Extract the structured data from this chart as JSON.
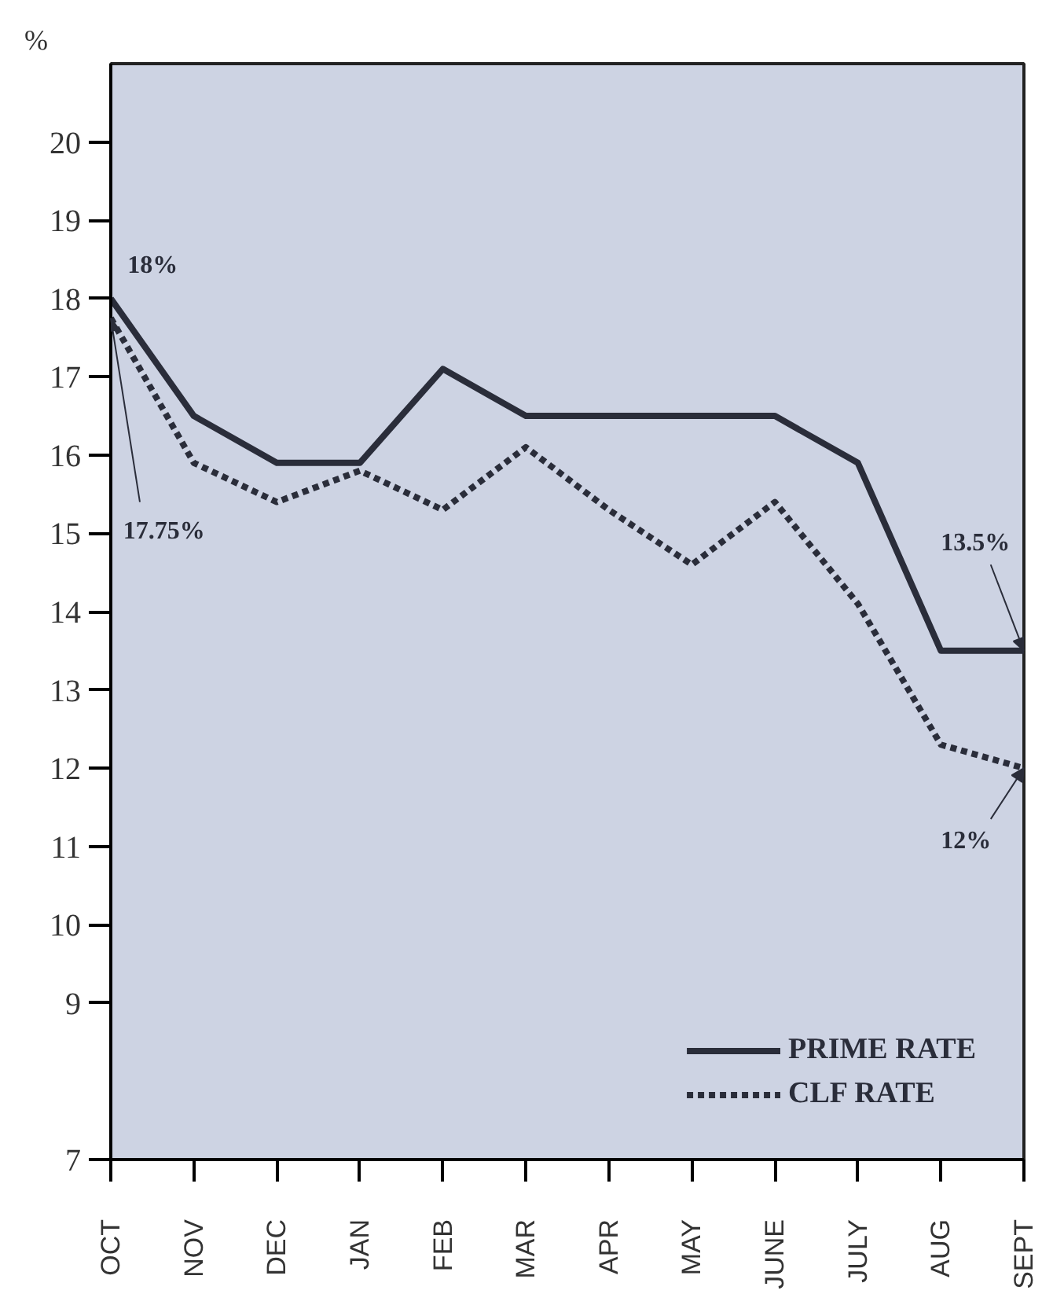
{
  "chart_data": {
    "type": "line",
    "ylabel": "%",
    "categories": [
      "OCT",
      "NOV",
      "DEC",
      "JAN",
      "FEB",
      "MAR",
      "APR",
      "MAY",
      "JUNE",
      "JULY",
      "AUG",
      "SEPT"
    ],
    "series": [
      {
        "name": "PRIME RATE",
        "color": "#2a2d3a",
        "line_style": "solid",
        "values": [
          18,
          16.5,
          15.9,
          15.9,
          17.1,
          16.5,
          16.5,
          16.5,
          16.5,
          15.9,
          13.5,
          13.5
        ]
      },
      {
        "name": "CLF RATE",
        "color": "#2a2d3a",
        "line_style": "dotted",
        "values": [
          17.75,
          15.9,
          15.4,
          15.8,
          15.3,
          16.1,
          15.3,
          14.6,
          15.4,
          14.1,
          12.3,
          12
        ]
      }
    ],
    "ylim": [
      7,
      21
    ],
    "yticks": [
      7,
      9,
      10,
      11,
      12,
      13,
      14,
      15,
      16,
      17,
      18,
      19,
      20
    ],
    "annotations": [
      {
        "text": "18%",
        "x": "OCT",
        "y": 18
      },
      {
        "text": "17.75%",
        "x": "OCT",
        "y": 17.75
      },
      {
        "text": "13.5%",
        "x": "SEPT",
        "y": 13.5
      },
      {
        "text": "12%",
        "x": "SEPT",
        "y": 12
      }
    ],
    "grid": false,
    "legend": "bottom right"
  }
}
